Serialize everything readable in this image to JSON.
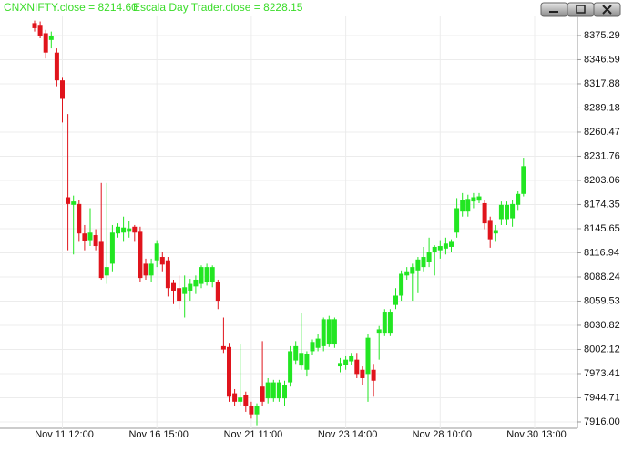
{
  "chart_data": {
    "type": "candlestick",
    "title": "CNXNIFTY.close = 8214.60",
    "subtitle": "Escala Day Trader.close = 8228.15",
    "up_color": "#22e622",
    "down_color": "#e0141c",
    "grid": true,
    "ylim": [
      7908.4,
      8398.0
    ],
    "yticks": [
      {
        "value": 7916.0,
        "label": "7916.00"
      },
      7944.71,
      7973.41,
      8002.12,
      8030.82,
      8059.53,
      8088.24,
      8116.94,
      8145.65,
      8174.35,
      8203.06,
      8231.76,
      8260.47,
      8289.18,
      8317.88,
      8346.59,
      8375.29
    ],
    "categories": [
      null,
      null,
      null,
      null,
      null,
      "Nov 11 12:00",
      null,
      null,
      null,
      null,
      null,
      null,
      null,
      null,
      null,
      null,
      null,
      null,
      null,
      null,
      null,
      null,
      "Nov 16 15:00",
      null,
      null,
      null,
      null,
      null,
      null,
      null,
      null,
      null,
      null,
      null,
      null,
      null,
      null,
      null,
      null,
      "Nov 21 11:00",
      null,
      null,
      null,
      null,
      null,
      null,
      null,
      null,
      null,
      null,
      null,
      null,
      null,
      null,
      null,
      null,
      "Nov 23 14:00",
      null,
      null,
      null,
      null,
      null,
      null,
      null,
      null,
      null,
      null,
      null,
      null,
      null,
      null,
      null,
      null,
      "Nov 28 10:00",
      null,
      null,
      null,
      null,
      null,
      null,
      null,
      null,
      null,
      null,
      null,
      null,
      null,
      null,
      null,
      null,
      "Nov 30 13:00"
    ],
    "open": [
      8390,
      8388,
      8378,
      8370,
      8355,
      8322,
      8183,
      8174,
      8175,
      8140,
      8132,
      8138,
      8130,
      8090,
      8104,
      8140,
      8141,
      8142,
      8148,
      8142,
      8104,
      8090,
      8108,
      8112,
      8108,
      8081,
      8075,
      8068,
      8072,
      8077,
      8080,
      8082,
      8082,
      8082,
      8006,
      8005,
      7950,
      7940,
      7948,
      7935,
      7925,
      7958,
      7944,
      7944,
      7944,
      7944,
      7963,
      7989,
      7983,
      7978,
      8000,
      8004,
      8006,
      8008,
      8008,
      7982,
      7984,
      7988,
      7990,
      7978,
      7973,
      7978,
      8022,
      8022,
      8022,
      8055,
      8066,
      8090,
      8092,
      8096,
      8100,
      8106,
      8118,
      8120,
      8122,
      8124,
      8141,
      8166,
      8166,
      8178,
      8179,
      8176,
      8156,
      8140,
      8157,
      8157,
      8158,
      8174,
      8187,
      null,
      null
    ],
    "high": [
      8393,
      8392,
      8382,
      8380,
      8360,
      8325,
      8282,
      8185,
      8180,
      8150,
      8170,
      8145,
      8200,
      8200,
      8150,
      8152,
      8160,
      8155,
      8150,
      8148,
      8110,
      8110,
      8132,
      8118,
      8112,
      8085,
      8090,
      8090,
      8086,
      8090,
      8102,
      8104,
      8102,
      8085,
      8040,
      8010,
      7955,
      8008,
      7952,
      7940,
      7938,
      8012,
      7968,
      7966,
      7966,
      7965,
      8006,
      8012,
      8045,
      8000,
      8014,
      8020,
      8040,
      8042,
      8040,
      7992,
      7994,
      7998,
      7998,
      7982,
      8020,
      7985,
      8030,
      8050,
      8050,
      8075,
      8096,
      8100,
      8104,
      8112,
      8124,
      8135,
      8126,
      8132,
      8135,
      8133,
      8182,
      8188,
      8186,
      8188,
      8188,
      8180,
      8160,
      8150,
      8178,
      8178,
      8180,
      8190,
      8230,
      null,
      null
    ],
    "low": [
      8380,
      8372,
      8348,
      8360,
      8315,
      8272,
      8120,
      8115,
      8130,
      8120,
      8125,
      8120,
      8085,
      8080,
      8095,
      8135,
      8130,
      8135,
      8130,
      8082,
      8085,
      8082,
      8100,
      8095,
      8065,
      8056,
      8050,
      8040,
      8060,
      8068,
      8075,
      8078,
      8076,
      8050,
      7998,
      7940,
      7935,
      7935,
      7928,
      7920,
      7912,
      7935,
      7938,
      7940,
      7940,
      7935,
      7958,
      7985,
      7978,
      7970,
      7995,
      8000,
      8000,
      8005,
      8004,
      7975,
      7978,
      7984,
      7968,
      7960,
      7940,
      7946,
      7990,
      8018,
      8018,
      8050,
      8060,
      8085,
      8060,
      8070,
      8095,
      8100,
      8090,
      8110,
      8115,
      8118,
      8135,
      8160,
      8160,
      8170,
      8176,
      8145,
      8123,
      8130,
      8150,
      8150,
      8148,
      8168,
      8184,
      null,
      null
    ],
    "close": [
      8384,
      8375,
      8355,
      8375,
      8322,
      8300,
      8175,
      8178,
      8140,
      8131,
      8141,
      8125,
      8087,
      8100,
      8141,
      8148,
      8147,
      8146,
      8141,
      8087,
      8090,
      8104,
      8128,
      8103,
      8075,
      8072,
      8060,
      8076,
      8080,
      8085,
      8100,
      8100,
      8100,
      8060,
      8002,
      7946,
      7940,
      7945,
      7935,
      7925,
      7935,
      7940,
      7963,
      7963,
      7963,
      7960,
      8000,
      8006,
      7998,
      7997,
      8011,
      8015,
      8038,
      8038,
      8038,
      7986,
      7990,
      7994,
      7973,
      7968,
      8016,
      7965,
      8026,
      8047,
      8047,
      8066,
      8092,
      8095,
      8100,
      8109,
      8112,
      8118,
      8124,
      8125,
      8128,
      8130,
      8170,
      8180,
      8181,
      8183,
      8184,
      8152,
      8133,
      8144,
      8174,
      8174,
      8175,
      8187,
      8220,
      null,
      null
    ]
  }
}
